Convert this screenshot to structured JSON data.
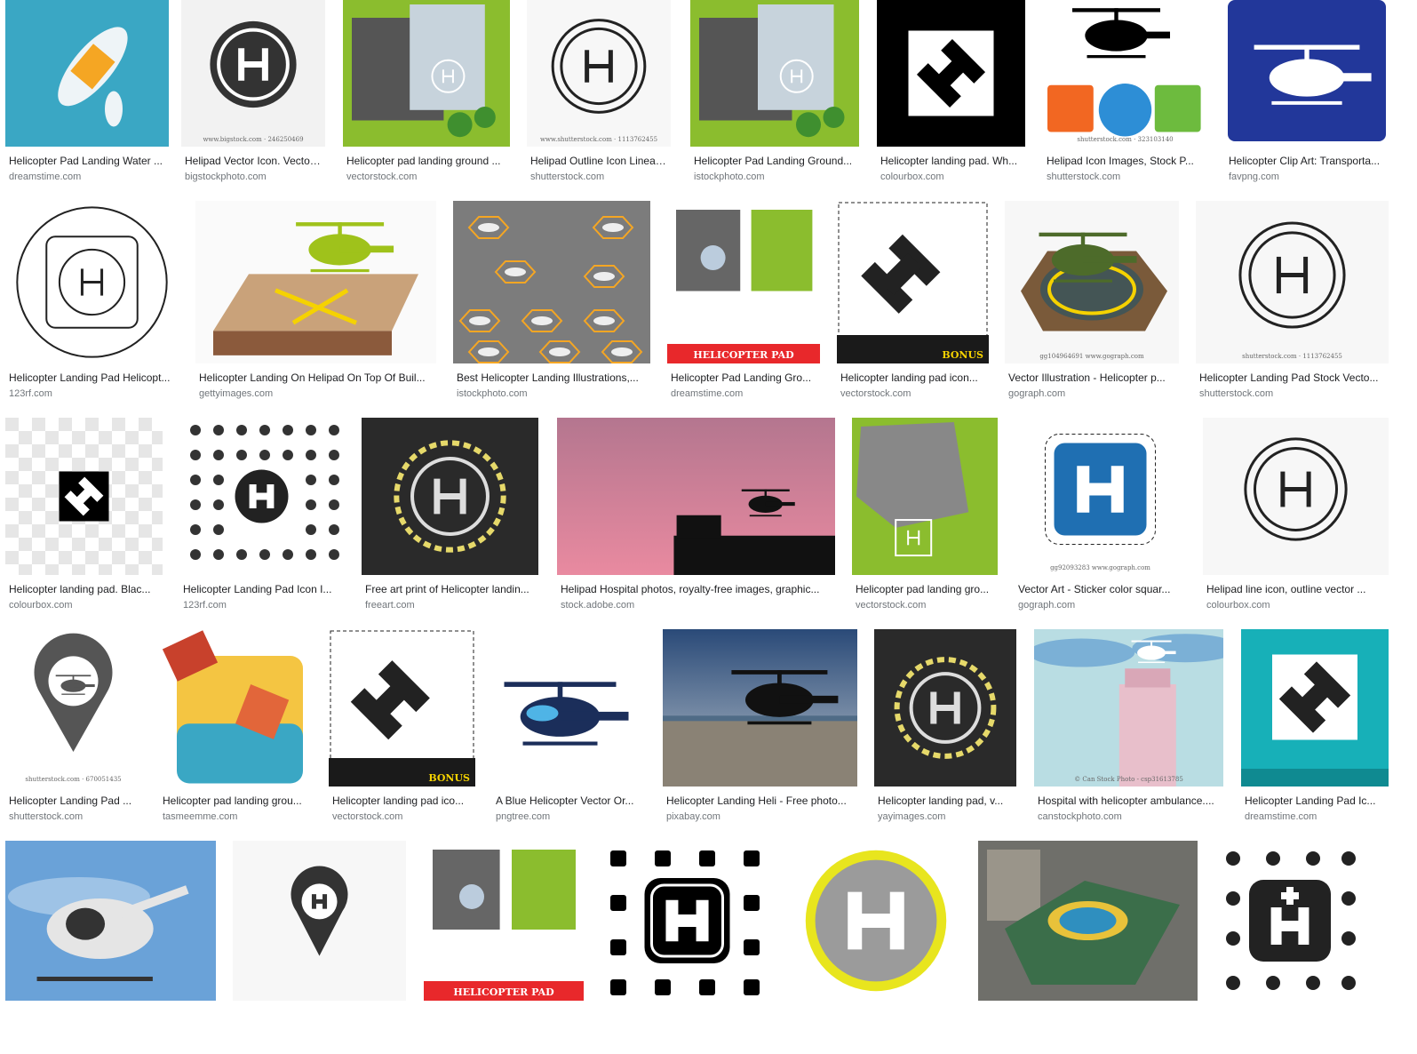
{
  "colors": {
    "title": "#202124",
    "source": "#70757a",
    "teal": "#3aa7c4",
    "green": "#7fb32a",
    "orange": "#f5a623",
    "navy": "#22379a",
    "dark": "#333333"
  },
  "results": [
    {
      "title": "Helicopter Pad Landing Water ...",
      "source": "dreamstime.com",
      "icon": "boat-top-view-image"
    },
    {
      "title": "Helipad Vector Icon. Vector ...",
      "source": "bigstockphoto.com",
      "icon": "helipad-round-icon",
      "caption": "www.bigstock.com · 246250469"
    },
    {
      "title": "Helicopter pad landing ground ...",
      "source": "vectorstock.com",
      "icon": "helipad-city-top-view-image"
    },
    {
      "title": "Helipad Outline Icon Linear ...",
      "source": "shutterstock.com",
      "icon": "helipad-outline-icon",
      "caption": "www.shutterstock.com · 1113762455"
    },
    {
      "title": "Helicopter Pad Landing Ground...",
      "source": "istockphoto.com",
      "icon": "helipad-city-top-view-image"
    },
    {
      "title": "Helicopter landing pad. Wh...",
      "source": "colourbox.com",
      "icon": "helipad-square-h-icon"
    },
    {
      "title": "Helipad Icon Images, Stock P...",
      "source": "shutterstock.com",
      "icon": "ambulance-helicopter-icons",
      "caption": "shutterstock.com · 323103140"
    },
    {
      "title": "Helicopter Clip Art: Transporta...",
      "source": "favpng.com",
      "icon": "helicopter-road-sign-icon"
    },
    {
      "title": "Helicopter Landing Pad Helicopt...",
      "source": "123rf.com",
      "icon": "helipad-outline-square-icon"
    },
    {
      "title": "Helicopter Landing On Helipad On Top Of Buil...",
      "source": "gettyimages.com",
      "icon": "helicopter-rooftop-image"
    },
    {
      "title": "Best Helicopter Landing Illustrations,...",
      "source": "istockphoto.com",
      "icon": "helicopters-hexagon-pads-image"
    },
    {
      "title": "Helicopter Pad Landing Gro...",
      "source": "dreamstime.com",
      "icon": "helipad-set-image",
      "caption": "HELICOPTER PAD"
    },
    {
      "title": "Helicopter landing pad icon...",
      "source": "vectorstock.com",
      "icon": "helipad-bonus-icon",
      "caption": "BONUS"
    },
    {
      "title": "Vector Illustration - Helicopter p...",
      "source": "gograph.com",
      "icon": "helicopter-octagon-pad-image",
      "caption": "gg104964691 www.gograph.com"
    },
    {
      "title": "Helicopter Landing Pad Stock Vecto...",
      "source": "shutterstock.com",
      "icon": "helipad-outline-icon",
      "caption": "shutterstock.com · 1113762455"
    },
    {
      "title": "Helicopter landing pad. Blac...",
      "source": "colourbox.com",
      "icon": "helipad-checker-icon"
    },
    {
      "title": "Helicopter Landing Pad Icon I...",
      "source": "123rf.com",
      "icon": "medical-icon-set"
    },
    {
      "title": "Free art print of Helicopter landin...",
      "source": "freeart.com",
      "icon": "asphalt-helipad-image"
    },
    {
      "title": "Helipad Hospital photos, royalty-free images, graphic...",
      "source": "stock.adobe.com",
      "icon": "helicopter-sunset-photo"
    },
    {
      "title": "Helicopter pad landing gro...",
      "source": "vectorstock.com",
      "icon": "helipad-crash-image"
    },
    {
      "title": "Vector Art - Sticker color squar...",
      "source": "gograph.com",
      "icon": "blue-h-sticker-icon",
      "caption": "gg92093283 www.gograph.com"
    },
    {
      "title": "Helipad line icon, outline vector ... ",
      "source": "colourbox.com",
      "icon": "helipad-outline-icon"
    },
    {
      "title": "Helicopter Landing Pad ...",
      "source": "shutterstock.com",
      "icon": "map-pin-helicopter-icon",
      "caption": "shutterstock.com · 670051435"
    },
    {
      "title": "Helicopter pad landing grou...",
      "source": "tasmeemme.com",
      "icon": "beach-helipad-image"
    },
    {
      "title": "Helicopter landing pad ico...",
      "source": "vectorstock.com",
      "icon": "helipad-bonus-icon",
      "caption": "BONUS"
    },
    {
      "title": "A Blue Helicopter Vector Or...",
      "source": "pngtree.com",
      "icon": "blue-helicopter-image"
    },
    {
      "title": "Helicopter Landing Heli - Free photo...",
      "source": "pixabay.com",
      "icon": "helicopter-landing-photo"
    },
    {
      "title": "Helicopter landing pad, v...",
      "source": "yayimages.com",
      "icon": "asphalt-helipad-image"
    },
    {
      "title": "Hospital with helicopter ambulance....",
      "source": "canstockphoto.com",
      "icon": "hospital-helicopter-image",
      "caption": "© Can Stock Photo - csp31613785"
    },
    {
      "title": "Helicopter Landing Pad Ic...",
      "source": "dreamstime.com",
      "icon": "helipad-teal-icon"
    },
    {
      "title": "",
      "source": "",
      "icon": "helicopter-3d-image"
    },
    {
      "title": "",
      "source": "",
      "icon": "map-pin-h-icon"
    },
    {
      "title": "",
      "source": "",
      "icon": "helipad-set-image",
      "caption": "HELICOPTER PAD"
    },
    {
      "title": "",
      "source": "",
      "icon": "hospital-h-icon-set"
    },
    {
      "title": "",
      "source": "",
      "icon": "yellow-ring-h-icon"
    },
    {
      "title": "",
      "source": "",
      "icon": "rooftop-helipad-photo"
    },
    {
      "title": "",
      "source": "",
      "icon": "medical-h-plus-icon-set"
    }
  ]
}
